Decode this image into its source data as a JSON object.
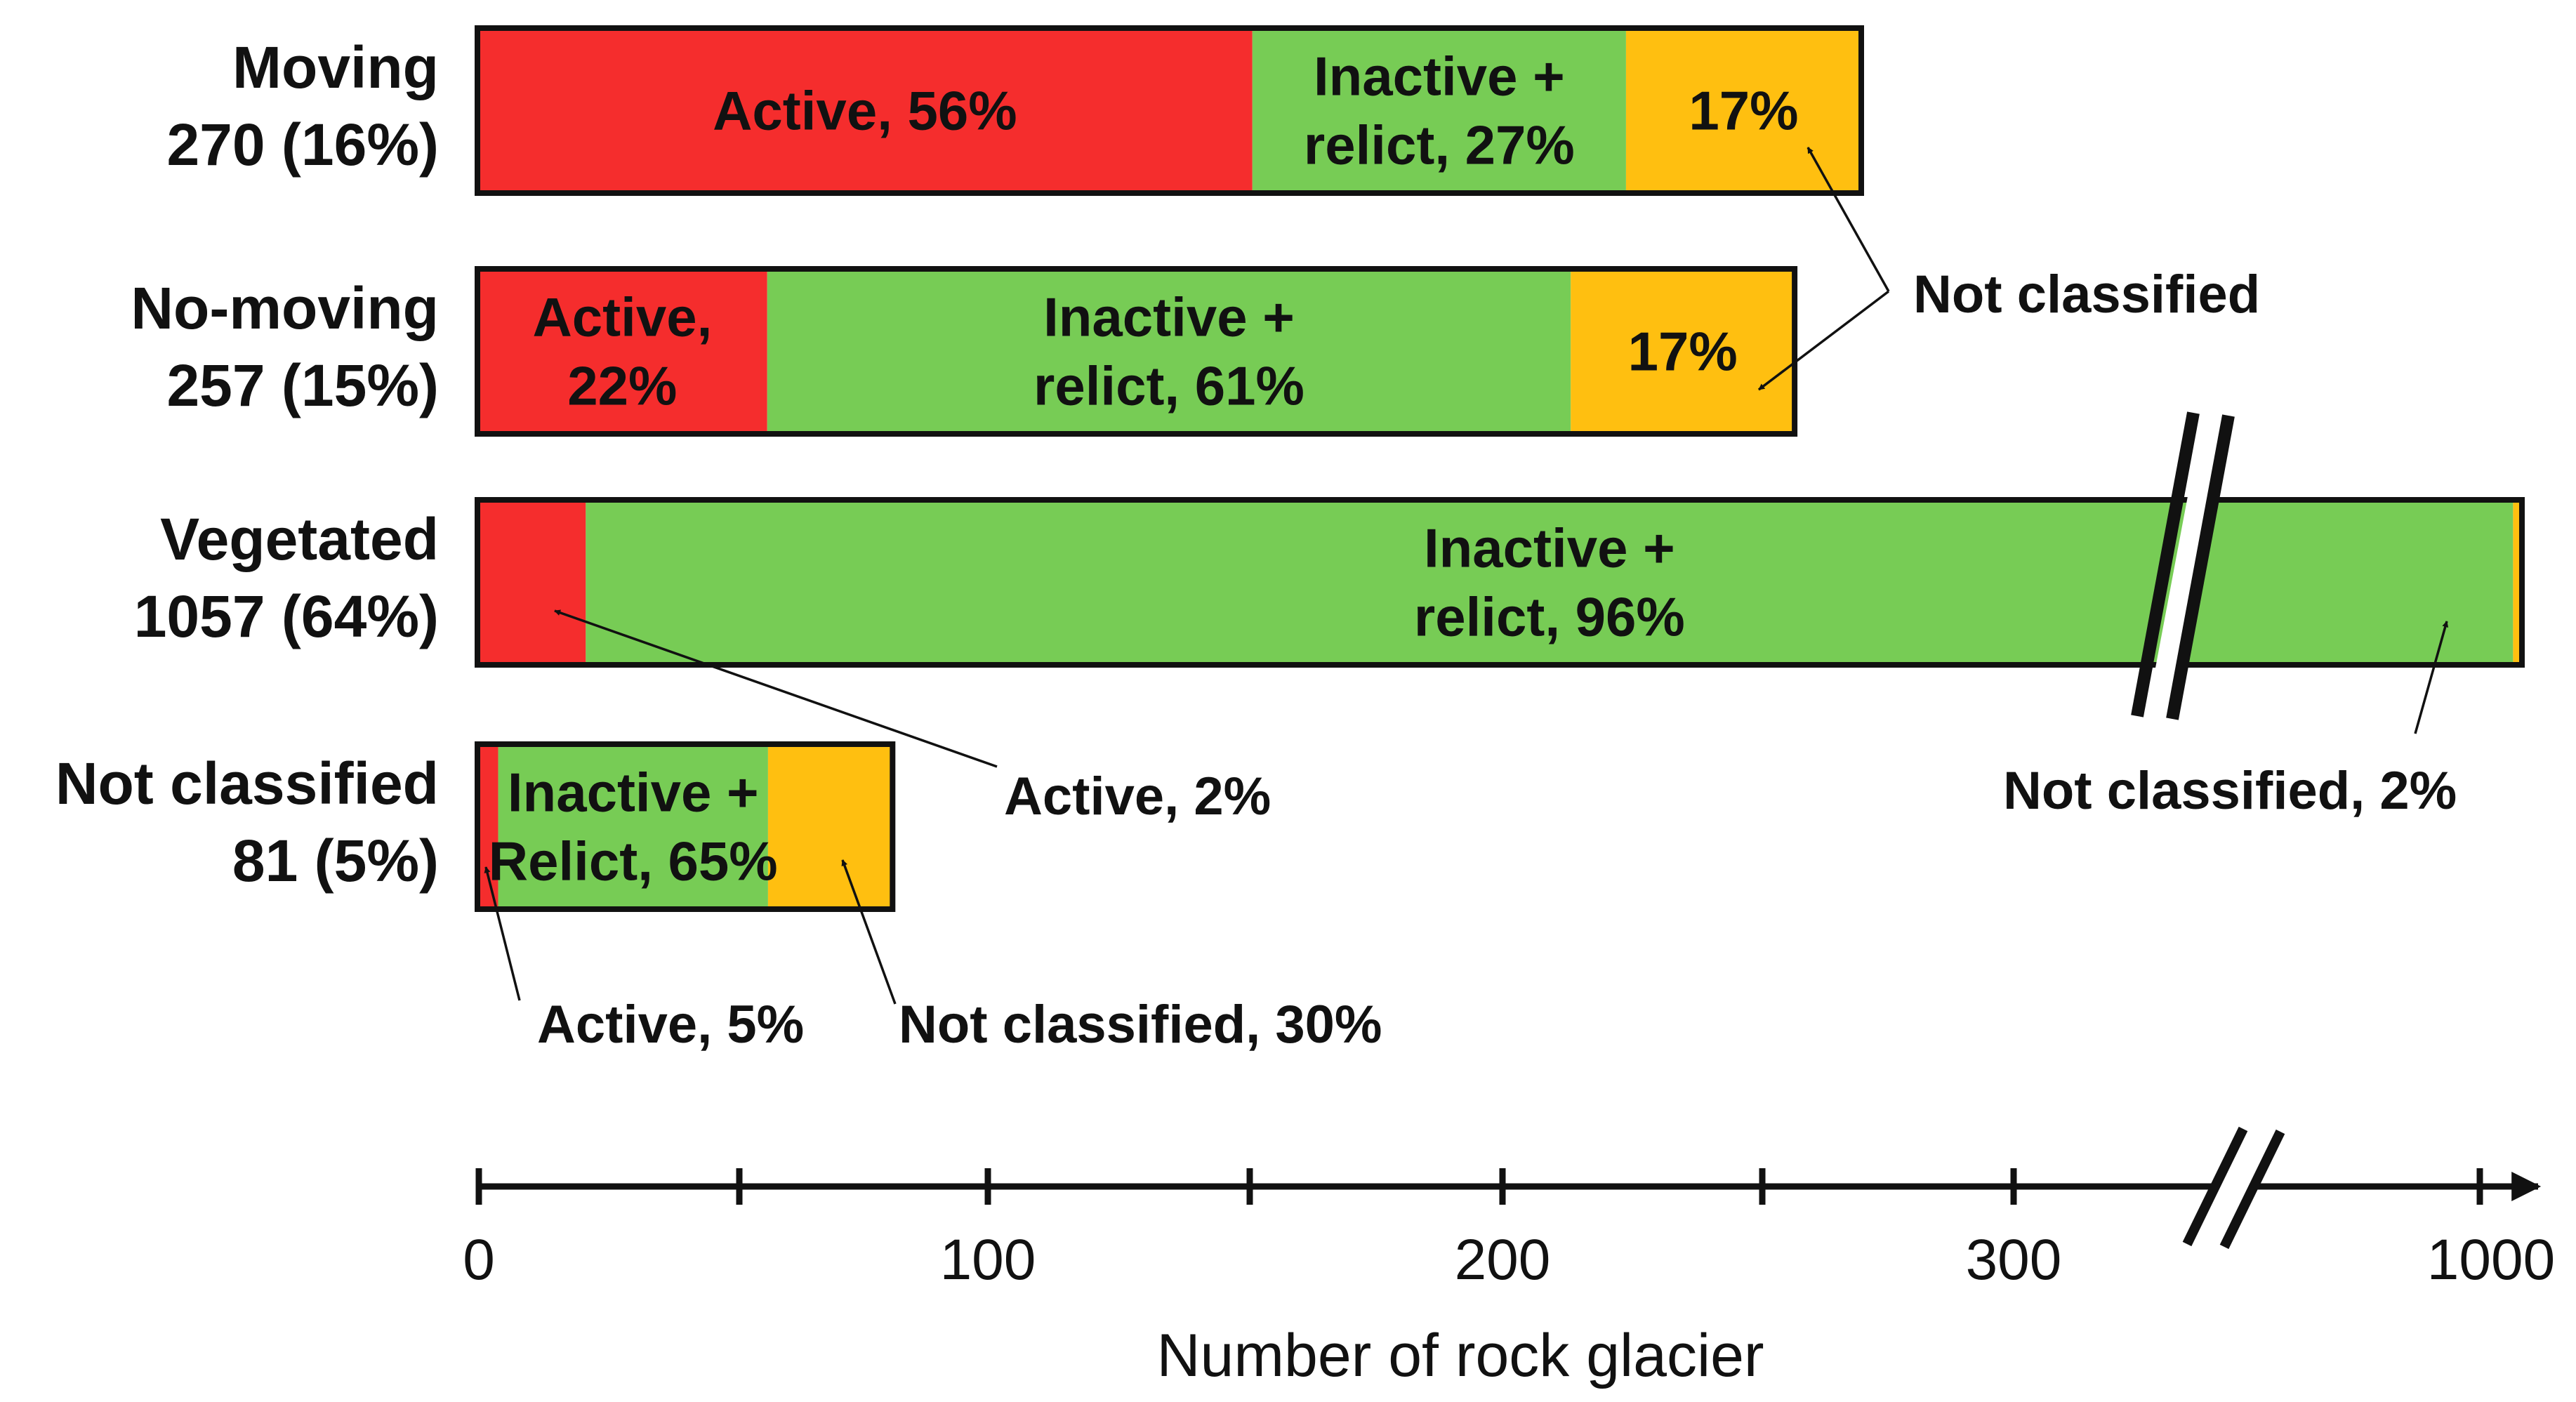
{
  "chart_data": {
    "type": "bar",
    "orientation": "horizontal",
    "stacked": true,
    "xlabel": "Number of rock glacier",
    "x_ticks": [
      "0",
      "100",
      "200",
      "300",
      "1000"
    ],
    "axis_break": true,
    "colors": {
      "active": "#f52d2d",
      "inactive": "#77cc55",
      "not_classified": "#ffbf10",
      "outline": "#111111"
    },
    "categories": [
      {
        "label_line1": "Moving",
        "label_line2": "270 (16%)",
        "total": 270,
        "segments": [
          {
            "class": "active",
            "percent": 56,
            "label": [
              "Active, 56%"
            ]
          },
          {
            "class": "inactive",
            "percent": 27,
            "label": [
              "Inactive +",
              "relict, 27%"
            ]
          },
          {
            "class": "not_classified",
            "percent": 17,
            "label": [
              "17%"
            ]
          }
        ]
      },
      {
        "label_line1": "No-moving",
        "label_line2": "257 (15%)",
        "total": 257,
        "segments": [
          {
            "class": "active",
            "percent": 22,
            "label": [
              "Active,",
              "22%"
            ]
          },
          {
            "class": "inactive",
            "percent": 61,
            "label": [
              "Inactive +",
              "relict, 61%"
            ]
          },
          {
            "class": "not_classified",
            "percent": 17,
            "label": [
              "17%"
            ]
          }
        ]
      },
      {
        "label_line1": "Vegetated",
        "label_line2": "1057 (64%)",
        "total": 1057,
        "broken": true,
        "segments": [
          {
            "class": "active",
            "percent": 2,
            "label": []
          },
          {
            "class": "inactive",
            "percent": 96,
            "label": [
              "Inactive +",
              "relict, 96%"
            ]
          },
          {
            "class": "not_classified",
            "percent": 2,
            "label": []
          }
        ]
      },
      {
        "label_line1": "Not classified",
        "label_line2": "81 (5%)",
        "total": 81,
        "segments": [
          {
            "class": "active",
            "percent": 5,
            "label": []
          },
          {
            "class": "inactive",
            "percent": 65,
            "label": [
              "Inactive +",
              "Relict, 65%"
            ]
          },
          {
            "class": "not_classified",
            "percent": 30,
            "label": []
          }
        ]
      }
    ],
    "annotations": [
      {
        "text": "Not classified",
        "target": "Moving & No-moving not classified"
      },
      {
        "text": "Active, 2%",
        "target": "Vegetated active"
      },
      {
        "text": "Not classified, 2%",
        "target": "Vegetated not classified"
      },
      {
        "text": "Active, 5%",
        "target": "Not classified active"
      },
      {
        "text": "Not classified, 30%",
        "target": "Not classified not classified"
      }
    ]
  }
}
